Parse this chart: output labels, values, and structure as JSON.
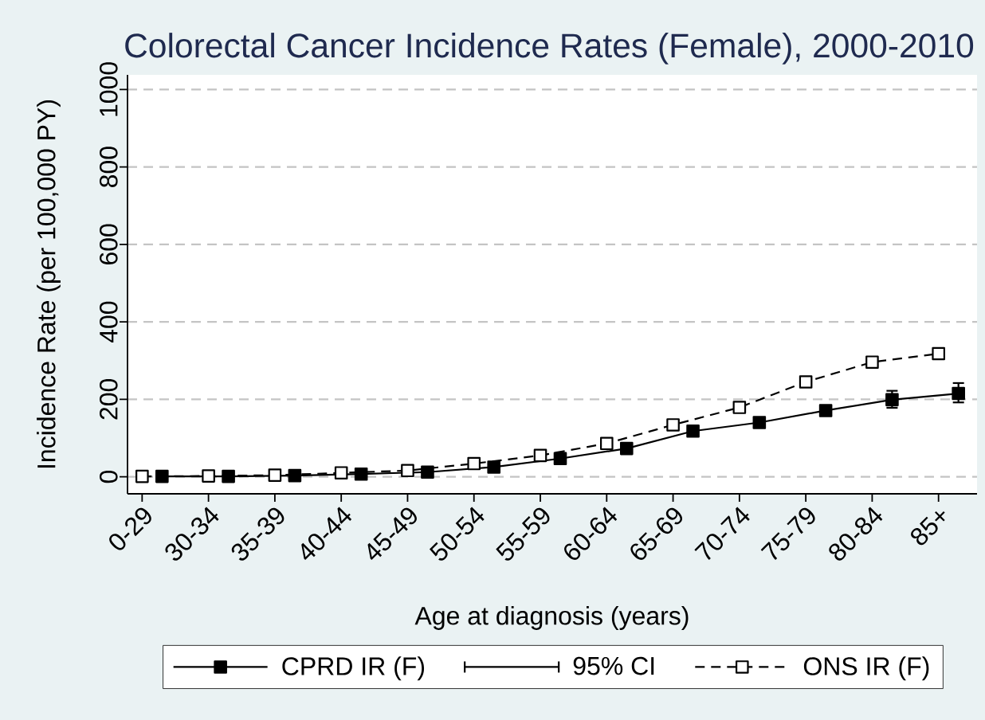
{
  "chart_data": {
    "type": "line",
    "title": "Colorectal Cancer Incidence Rates (Female), 2000-2010",
    "xlabel": "Age at diagnosis (years)",
    "ylabel": "Incidence Rate (per 100,000 PY)",
    "categories": [
      "0-29",
      "30-34",
      "35-39",
      "40-44",
      "45-49",
      "50-54",
      "55-59",
      "60-64",
      "65-69",
      "70-74",
      "75-79",
      "80-84",
      "85+"
    ],
    "ylim": [
      -44,
      1038
    ],
    "yticks": [
      0,
      200,
      400,
      600,
      800,
      1000
    ],
    "grid": "y",
    "legend": "bottom",
    "marker": "square",
    "annotations": [
      "95% CI"
    ],
    "series": [
      {
        "name": "CPRD IR (F)",
        "color": "#000000",
        "line_style": "solid",
        "values": [
          1,
          1,
          3,
          7,
          12,
          25,
          47,
          73,
          118,
          140,
          171,
          199,
          215
        ],
        "errors": [
          null,
          null,
          null,
          null,
          null,
          null,
          null,
          null,
          null,
          null,
          null,
          [
            178,
            222
          ],
          [
            192,
            242
          ]
        ]
      },
      {
        "name": "ONS IR (F)",
        "color": "#000000",
        "line_style": "dashed",
        "values": [
          1,
          2,
          4,
          10,
          16,
          34,
          55,
          86,
          134,
          179,
          245,
          296,
          318
        ]
      }
    ]
  }
}
